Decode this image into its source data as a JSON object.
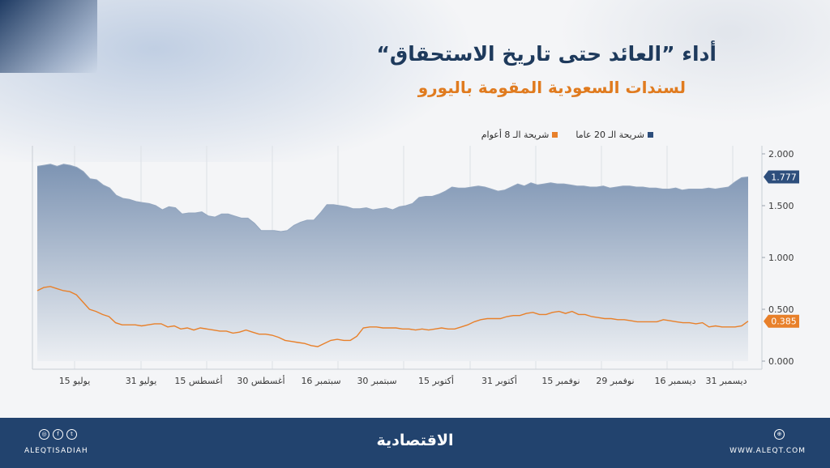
{
  "header": {
    "title": "أداء ”العائد حتى تاريخ الاستحقاق“",
    "subtitle": "لسندات السعودية المقومة باليورو"
  },
  "legend": {
    "items": [
      {
        "label": "شريحة الـ 20 عاما",
        "color": "#2d4e7c"
      },
      {
        "label": "شريحة الـ 8 أعوام",
        "color": "#e8802a"
      }
    ]
  },
  "chart_data": {
    "type": "line",
    "x_tick_labels": [
      "15 يوليو",
      "31 يوليو",
      "15 أغسطس",
      "30 أغسطس",
      "16 سبتمبر",
      "30 سبتمبر",
      "15 أكتوبر",
      "31 أكتوبر",
      "15 نوفمبر",
      "29 نوفمبر",
      "16 ديسمبر",
      "31 ديسمبر"
    ],
    "y_tick_labels": [
      "2.000",
      "1.500",
      "1.000",
      "0.500",
      "0.000"
    ],
    "ylim": [
      0,
      2
    ],
    "grid": "vertical",
    "series": [
      {
        "name": "شريحة الـ 20 عاما",
        "color": "#2d4e7c",
        "end_label": "1.777",
        "values": [
          1.88,
          1.89,
          1.9,
          1.88,
          1.9,
          1.89,
          1.87,
          1.83,
          1.76,
          1.75,
          1.7,
          1.67,
          1.6,
          1.57,
          1.56,
          1.54,
          1.53,
          1.52,
          1.5,
          1.46,
          1.49,
          1.48,
          1.42,
          1.43,
          1.43,
          1.44,
          1.4,
          1.39,
          1.42,
          1.42,
          1.4,
          1.38,
          1.38,
          1.33,
          1.26,
          1.26,
          1.26,
          1.25,
          1.26,
          1.31,
          1.34,
          1.36,
          1.36,
          1.43,
          1.51,
          1.51,
          1.5,
          1.49,
          1.47,
          1.47,
          1.48,
          1.46,
          1.47,
          1.48,
          1.46,
          1.49,
          1.5,
          1.52,
          1.58,
          1.59,
          1.59,
          1.61,
          1.64,
          1.68,
          1.67,
          1.67,
          1.68,
          1.69,
          1.68,
          1.66,
          1.64,
          1.65,
          1.68,
          1.71,
          1.69,
          1.72,
          1.7,
          1.71,
          1.72,
          1.71,
          1.71,
          1.7,
          1.69,
          1.69,
          1.68,
          1.68,
          1.69,
          1.67,
          1.68,
          1.69,
          1.69,
          1.68,
          1.68,
          1.67,
          1.67,
          1.66,
          1.66,
          1.67,
          1.65,
          1.66,
          1.66,
          1.66,
          1.67,
          1.66,
          1.67,
          1.68,
          1.73,
          1.77,
          1.777
        ]
      },
      {
        "name": "شريحة الـ 8 أعوام",
        "color": "#e8802a",
        "end_label": "0.385",
        "values": [
          0.68,
          0.71,
          0.72,
          0.7,
          0.68,
          0.67,
          0.64,
          0.57,
          0.5,
          0.48,
          0.45,
          0.43,
          0.37,
          0.35,
          0.35,
          0.35,
          0.34,
          0.35,
          0.36,
          0.36,
          0.33,
          0.34,
          0.31,
          0.32,
          0.3,
          0.32,
          0.31,
          0.3,
          0.29,
          0.29,
          0.27,
          0.28,
          0.3,
          0.28,
          0.26,
          0.26,
          0.25,
          0.23,
          0.2,
          0.19,
          0.18,
          0.17,
          0.15,
          0.14,
          0.17,
          0.2,
          0.21,
          0.2,
          0.2,
          0.24,
          0.32,
          0.33,
          0.33,
          0.32,
          0.32,
          0.32,
          0.31,
          0.31,
          0.3,
          0.31,
          0.3,
          0.31,
          0.32,
          0.31,
          0.31,
          0.33,
          0.35,
          0.38,
          0.4,
          0.41,
          0.41,
          0.41,
          0.43,
          0.44,
          0.44,
          0.46,
          0.47,
          0.45,
          0.45,
          0.47,
          0.48,
          0.46,
          0.48,
          0.45,
          0.45,
          0.43,
          0.42,
          0.41,
          0.41,
          0.4,
          0.4,
          0.39,
          0.38,
          0.38,
          0.38,
          0.38,
          0.4,
          0.39,
          0.38,
          0.37,
          0.37,
          0.36,
          0.37,
          0.33,
          0.34,
          0.33,
          0.33,
          0.33,
          0.34,
          0.385
        ]
      }
    ]
  },
  "footer": {
    "brand": "الاقتصادية",
    "handle": "ALEQTISADIAH",
    "website": "WWW.ALEQT.COM",
    "social_icons": [
      "instagram-icon",
      "facebook-icon",
      "twitter-icon"
    ],
    "site_icon": "globe-icon"
  }
}
